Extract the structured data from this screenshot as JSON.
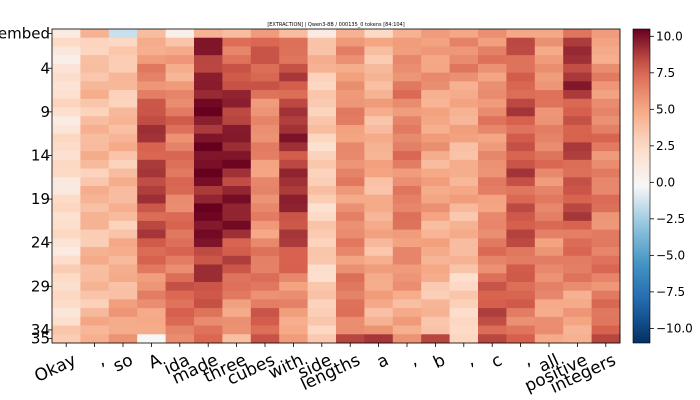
{
  "chart_data": {
    "type": "heatmap",
    "title": "[EXTRACTION]  |  Qwen3-8B / 000135_0  tokens [84:104]",
    "x_tokens": [
      "Okay",
      ",",
      "so",
      "A",
      "ida",
      "made",
      "three",
      "cubes",
      "with",
      "side",
      "lengths",
      "a",
      ",",
      "b",
      ",",
      "c",
      ",",
      "all",
      "positive",
      "integers"
    ],
    "y_tick_labels": [
      {
        "row": 0,
        "label": "embed"
      },
      {
        "row": 4,
        "label": "4"
      },
      {
        "row": 9,
        "label": "9"
      },
      {
        "row": 14,
        "label": "14"
      },
      {
        "row": 19,
        "label": "19"
      },
      {
        "row": 24,
        "label": "24"
      },
      {
        "row": 29,
        "label": "29"
      },
      {
        "row": 34,
        "label": "34"
      },
      {
        "row": 35,
        "label": "35"
      }
    ],
    "n_layers": 36,
    "color_range": [
      -11,
      10.5
    ],
    "colormap": "RdBu_r",
    "colorbar_ticks": [
      10.0,
      7.5,
      5.0,
      2.5,
      0.0,
      -2.5,
      -5.0,
      -7.5,
      -10.0
    ],
    "colorbar_tick_labels": [
      "10.0",
      "7.5",
      "5.0",
      "2.5",
      "0.0",
      "−2.5",
      "−5.0",
      "−7.5",
      "−10.0"
    ],
    "column_profiles": [
      {
        "token": "Okay",
        "embed": 1.0,
        "early": 1.5,
        "mid": 2.0,
        "late": 2.5,
        "last": 2.5
      },
      {
        "token": ",",
        "embed": 4.5,
        "early": 3.5,
        "mid": 4.0,
        "late": 4.0,
        "last": 5.0
      },
      {
        "token": "so",
        "embed": -1.5,
        "early": 3.0,
        "mid": 4.0,
        "late": 5.0,
        "last": 5.5
      },
      {
        "token": "A",
        "embed": 4.0,
        "early": 4.5,
        "mid": 8.5,
        "late": 4.5,
        "last": 0.5
      },
      {
        "token": "ida",
        "embed": 0.5,
        "early": 4.0,
        "mid": 7.0,
        "late": 7.5,
        "last": 6.5
      },
      {
        "token": "made",
        "embed": 4.5,
        "early": 9.0,
        "mid": 10.0,
        "late": 7.0,
        "last": 6.5
      },
      {
        "token": "three",
        "embed": 4.0,
        "early": 7.0,
        "mid": 9.5,
        "late": 5.0,
        "last": 4.0
      },
      {
        "token": "cubes",
        "embed": 5.5,
        "early": 8.5,
        "mid": 6.0,
        "late": 7.5,
        "last": 8.0
      },
      {
        "token": "with",
        "embed": 4.0,
        "early": 7.0,
        "mid": 9.0,
        "late": 4.5,
        "last": 5.5
      },
      {
        "token": "side",
        "embed": 1.0,
        "early": 4.0,
        "mid": 3.0,
        "late": 3.0,
        "last": 4.5
      },
      {
        "token": "lengths",
        "embed": 4.5,
        "early": 5.5,
        "mid": 6.0,
        "late": 7.0,
        "last": 8.0
      },
      {
        "token": "a",
        "embed": 2.5,
        "early": 4.0,
        "mid": 4.5,
        "late": 5.0,
        "last": 8.5
      },
      {
        "token": ",",
        "embed": 4.5,
        "early": 6.0,
        "mid": 6.5,
        "late": 4.5,
        "last": 6.0
      },
      {
        "token": "b",
        "embed": 5.5,
        "early": 5.5,
        "mid": 5.0,
        "late": 3.5,
        "last": 8.0
      },
      {
        "token": ",",
        "embed": 5.0,
        "early": 6.5,
        "mid": 4.5,
        "late": 2.0,
        "last": 3.5
      },
      {
        "token": "c",
        "embed": 6.0,
        "early": 6.0,
        "mid": 6.0,
        "late": 8.5,
        "last": 9.0
      },
      {
        "token": ",",
        "embed": 5.0,
        "early": 7.5,
        "mid": 8.0,
        "late": 7.0,
        "last": 7.0
      },
      {
        "token": "all",
        "embed": 5.0,
        "early": 5.5,
        "mid": 6.5,
        "late": 5.5,
        "last": 5.0
      },
      {
        "token": "positive",
        "embed": 7.0,
        "early": 9.5,
        "mid": 8.0,
        "late": 4.5,
        "last": 4.0
      },
      {
        "token": "integers",
        "embed": 5.5,
        "early": 5.0,
        "mid": 6.5,
        "late": 7.0,
        "last": 8.5
      }
    ]
  }
}
